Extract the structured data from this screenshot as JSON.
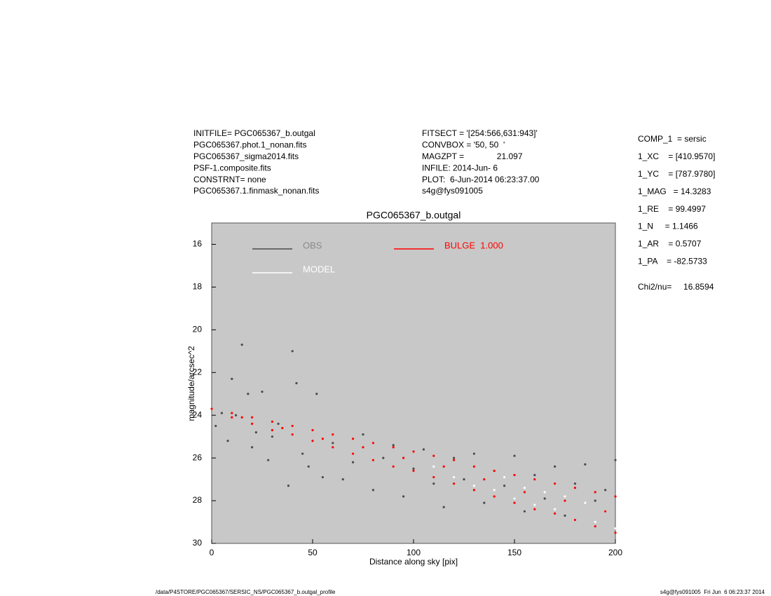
{
  "chart_data": {
    "type": "scatter",
    "title": "PGC065367_b.outgal",
    "xlabel": "Distance along sky [pix]",
    "ylabel": "magnitude/arcsec^2",
    "header_left": [
      "INITFILE= PGC065367_b.outgal",
      "PGC065367.phot.1_nonan.fits",
      "PGC065367_sigma2014.fits",
      "PSF-1.composite.fits",
      "CONSTRNT= none",
      "PGC065367.1.finmask_nonan.fits"
    ],
    "header_middle": [
      "FITSECT = '[254:566,631:943]'",
      "CONVBOX = '50, 50  '",
      "MAGZPT =              21.097",
      "INFILE: 2014-Jun- 6",
      "PLOT:  6-Jun-2014 06:23:37.00",
      "s4g@fys091005"
    ],
    "parameters": [
      "COMP_1  = sersic",
      "1_XC    = [410.9570]",
      "1_YC    = [787.9780]",
      "1_MAG   = 14.3283",
      "1_RE    = 99.4997",
      "1_N     = 1.1466",
      "1_AR    = 0.5707",
      "1_PA    = -82.5733",
      "Chi2/nu=     16.8594"
    ],
    "footer_left": "/data/P4STORE/PGC065367/SERSIC_NS/PGC065367_b.outgal_profile",
    "footer_right": "s4g@fys091005  Fri Jun  6 06:23:37 2014",
    "xlim": [
      0,
      200
    ],
    "ylim": [
      30,
      15
    ],
    "xticks": [
      0,
      50,
      100,
      150,
      200
    ],
    "yticks": [
      16,
      18,
      20,
      22,
      24,
      26,
      28,
      30
    ],
    "background": "#c8c8c8",
    "series": [
      {
        "name": "OBS",
        "color": "#4a4a4a",
        "x": [
          2,
          5,
          8,
          10,
          12,
          15,
          18,
          20,
          22,
          25,
          28,
          30,
          33,
          38,
          40,
          42,
          45,
          48,
          52,
          55,
          60,
          65,
          70,
          75,
          80,
          85,
          90,
          95,
          100,
          105,
          110,
          115,
          120,
          125,
          130,
          135,
          140,
          145,
          150,
          155,
          160,
          165,
          170,
          175,
          180,
          185,
          190,
          195,
          200
        ],
        "values": [
          24.5,
          23.9,
          25.2,
          22.3,
          24.0,
          20.7,
          23.0,
          25.5,
          24.8,
          22.9,
          26.1,
          25.0,
          24.4,
          27.3,
          21.0,
          22.5,
          25.8,
          26.4,
          23.0,
          26.9,
          25.3,
          27.0,
          26.2,
          24.9,
          27.5,
          26.0,
          25.4,
          27.8,
          26.5,
          25.6,
          27.2,
          28.3,
          26.0,
          27.0,
          25.8,
          28.1,
          26.6,
          27.3,
          25.9,
          28.5,
          26.8,
          27.9,
          26.4,
          28.7,
          27.2,
          26.3,
          28.0,
          27.5,
          26.1
        ]
      },
      {
        "name": "MODEL",
        "color": "#ffffff",
        "x": [
          110,
          120,
          130,
          140,
          145,
          150,
          155,
          160,
          165,
          170,
          175,
          180,
          185,
          190,
          195,
          200
        ],
        "values": [
          26.4,
          26.9,
          27.3,
          27.5,
          26.9,
          27.9,
          27.4,
          28.2,
          27.6,
          28.4,
          27.8,
          28.9,
          28.1,
          29.0,
          28.5,
          29.3
        ]
      },
      {
        "name": "BULGE  1.000",
        "color": "#ff0000",
        "x": [
          0,
          10,
          20,
          30,
          40,
          50,
          60,
          70,
          80,
          90,
          100,
          110,
          120,
          130,
          140,
          150,
          160,
          170,
          180,
          190,
          200,
          10,
          20,
          30,
          40,
          50,
          60,
          70,
          80,
          90,
          100,
          110,
          120,
          130,
          140,
          150,
          160,
          170,
          180,
          190,
          200,
          15,
          35,
          55,
          75,
          95,
          115,
          135,
          155,
          175,
          195
        ],
        "values": [
          23.7,
          23.9,
          24.1,
          24.3,
          24.5,
          24.7,
          24.9,
          25.1,
          25.3,
          25.5,
          25.7,
          25.9,
          26.1,
          26.4,
          26.6,
          26.8,
          27.0,
          27.2,
          27.4,
          27.6,
          27.8,
          24.1,
          24.4,
          24.7,
          24.9,
          25.2,
          25.5,
          25.8,
          26.1,
          26.4,
          26.6,
          26.9,
          27.2,
          27.5,
          27.8,
          28.1,
          28.4,
          28.6,
          28.9,
          29.2,
          29.5,
          24.1,
          24.6,
          25.1,
          25.5,
          26.0,
          26.4,
          27.0,
          27.6,
          28.0,
          28.5
        ]
      }
    ]
  }
}
